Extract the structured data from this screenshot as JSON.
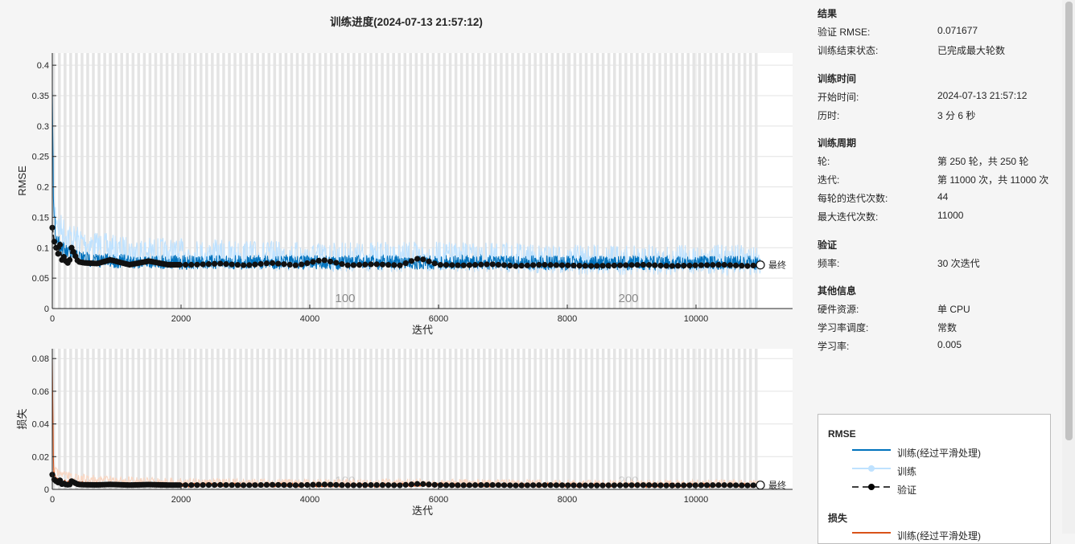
{
  "title": "训练进度(2024-07-13 21:57:12)",
  "colors": {
    "train_smoothed_rmse": "#0072BD",
    "train_rmse": "#bfe2ff",
    "train_smoothed_loss": "#D95319",
    "train_loss": "#f9d6c2",
    "validation": "#000000",
    "epoch_band": "#d9d9d9"
  },
  "chart_data": [
    {
      "type": "line",
      "ylabel": "RMSE",
      "xlabel": "迭代",
      "xlim": [
        0,
        11500
      ],
      "ylim": [
        0,
        0.42
      ],
      "xticks": [
        0,
        2000,
        4000,
        6000,
        8000,
        10000
      ],
      "xtick_labels": [
        "0",
        "2000",
        "4000",
        "6000",
        "8000",
        "10000"
      ],
      "yticks": [
        0,
        0.05,
        0.1,
        0.15,
        0.2,
        0.25,
        0.3,
        0.35,
        0.4
      ],
      "ytick_labels": [
        "0",
        "0.05",
        "0.1",
        "0.15",
        "0.2",
        "0.25",
        "0.3",
        "0.35",
        "0.4"
      ],
      "epoch_labels": [
        {
          "text": "100",
          "x": 4550
        },
        {
          "text": "200",
          "x": 8950
        }
      ],
      "final_label": "最终",
      "grid": true,
      "series": [
        {
          "role": "train_smoothed",
          "x": [
            0,
            20,
            60,
            150,
            300,
            600,
            1000,
            2000,
            4000,
            6000,
            8000,
            10000,
            11000
          ],
          "y": [
            0.38,
            0.17,
            0.13,
            0.11,
            0.1,
            0.092,
            0.09,
            0.088,
            0.088,
            0.088,
            0.087,
            0.087,
            0.087
          ]
        },
        {
          "role": "train",
          "x": [
            0,
            10,
            100,
            300,
            600,
            1000,
            2000,
            4000,
            6000,
            8000,
            10000,
            11000
          ],
          "y": [
            0.42,
            0.2,
            0.16,
            0.14,
            0.13,
            0.12,
            0.115,
            0.11,
            0.11,
            0.105,
            0.105,
            0.105
          ]
        },
        {
          "role": "validation",
          "x": [
            0,
            30,
            60,
            90,
            120,
            150,
            180,
            210,
            240,
            270,
            300,
            400,
            500,
            700,
            900,
            1200,
            1500,
            1800,
            2200,
            2600,
            3000,
            3400,
            3800,
            4200,
            4600,
            5000,
            5400,
            5700,
            6000,
            6400,
            6800,
            7200,
            7600,
            8000,
            8400,
            8800,
            9200,
            9600,
            10000,
            10400,
            10800,
            11000
          ],
          "y": [
            0.133,
            0.11,
            0.1,
            0.09,
            0.105,
            0.08,
            0.085,
            0.078,
            0.075,
            0.08,
            0.1,
            0.077,
            0.075,
            0.074,
            0.08,
            0.072,
            0.078,
            0.072,
            0.072,
            0.074,
            0.071,
            0.075,
            0.071,
            0.08,
            0.071,
            0.073,
            0.071,
            0.083,
            0.072,
            0.071,
            0.073,
            0.07,
            0.072,
            0.071,
            0.07,
            0.071,
            0.072,
            0.07,
            0.071,
            0.072,
            0.07,
            0.0717
          ]
        }
      ]
    },
    {
      "type": "line",
      "ylabel": "损失",
      "xlabel": "迭代",
      "xlim": [
        0,
        11500
      ],
      "ylim": [
        0,
        0.086
      ],
      "xticks": [
        0,
        2000,
        4000,
        6000,
        8000,
        10000
      ],
      "xtick_labels": [
        "0",
        "2000",
        "4000",
        "6000",
        "8000",
        "10000"
      ],
      "yticks": [
        0,
        0.02,
        0.04,
        0.06,
        0.08
      ],
      "ytick_labels": [
        "0",
        "0.02",
        "0.04",
        "0.06",
        "0.08"
      ],
      "epoch_labels": [
        {
          "text": "100",
          "x": 4550
        },
        {
          "text": "200",
          "x": 8950
        }
      ],
      "final_label": "最终",
      "grid": true,
      "series": [
        {
          "role": "train_smoothed",
          "x": [
            0,
            20,
            60,
            150,
            300,
            600,
            1000,
            2000,
            4000,
            6000,
            8000,
            10000,
            11000
          ],
          "y": [
            0.082,
            0.012,
            0.008,
            0.006,
            0.005,
            0.0045,
            0.004,
            0.0038,
            0.0038,
            0.0038,
            0.0037,
            0.0037,
            0.0037
          ]
        },
        {
          "role": "train",
          "x": [
            0,
            10,
            100,
            300,
            600,
            1000,
            2000,
            4000,
            6000,
            8000,
            10000,
            11000
          ],
          "y": [
            0.086,
            0.015,
            0.012,
            0.01,
            0.009,
            0.008,
            0.007,
            0.0065,
            0.0065,
            0.006,
            0.006,
            0.006
          ]
        },
        {
          "role": "validation",
          "x": [
            0,
            30,
            60,
            90,
            120,
            150,
            180,
            210,
            240,
            270,
            300,
            400,
            500,
            700,
            900,
            1200,
            1500,
            1800,
            2200,
            2600,
            3000,
            3400,
            3800,
            4200,
            4600,
            5000,
            5400,
            5700,
            6000,
            6400,
            6800,
            7200,
            7600,
            8000,
            8400,
            8800,
            9200,
            9600,
            10000,
            10400,
            10800,
            11000
          ],
          "y": [
            0.009,
            0.006,
            0.005,
            0.0042,
            0.0055,
            0.0032,
            0.0036,
            0.003,
            0.0028,
            0.003,
            0.005,
            0.003,
            0.0028,
            0.0027,
            0.003,
            0.0026,
            0.0029,
            0.0026,
            0.0026,
            0.0027,
            0.0025,
            0.0028,
            0.0025,
            0.003,
            0.0025,
            0.0027,
            0.0025,
            0.0034,
            0.0026,
            0.0025,
            0.0027,
            0.0024,
            0.0026,
            0.0025,
            0.0024,
            0.0025,
            0.0026,
            0.0024,
            0.0025,
            0.0026,
            0.0024,
            0.0026
          ]
        }
      ]
    }
  ],
  "sections": [
    {
      "heading": "结果",
      "rows": [
        {
          "key": "验证 RMSE:",
          "value": "0.071677"
        },
        {
          "key": "训练结束状态:",
          "value": "已完成最大轮数"
        }
      ]
    },
    {
      "heading": "训练时间",
      "rows": [
        {
          "key": "开始时间:",
          "value": "2024-07-13 21:57:12"
        },
        {
          "key": "历时:",
          "value": "3 分 6 秒"
        }
      ]
    },
    {
      "heading": "训练周期",
      "rows": [
        {
          "key": "轮:",
          "value": "第 250 轮，共 250 轮"
        },
        {
          "key": "迭代:",
          "value": "第 11000 次，共 11000 次"
        },
        {
          "key": "每轮的迭代次数:",
          "value": "44"
        },
        {
          "key": "最大迭代次数:",
          "value": "11000"
        }
      ]
    },
    {
      "heading": "验证",
      "rows": [
        {
          "key": "频率:",
          "value": "30 次迭代"
        }
      ]
    },
    {
      "heading": "其他信息",
      "rows": [
        {
          "key": "硬件资源:",
          "value": "单 CPU"
        },
        {
          "key": "学习率调度:",
          "value": "常数"
        },
        {
          "key": "学习率:",
          "value": "0.005"
        }
      ]
    }
  ],
  "legend": {
    "rmse_heading": "RMSE",
    "rmse_items": [
      "训练(经过平滑处理)",
      "训练",
      "验证"
    ],
    "loss_heading": "损失",
    "loss_items": [
      "训练(经过平滑处理)"
    ]
  }
}
